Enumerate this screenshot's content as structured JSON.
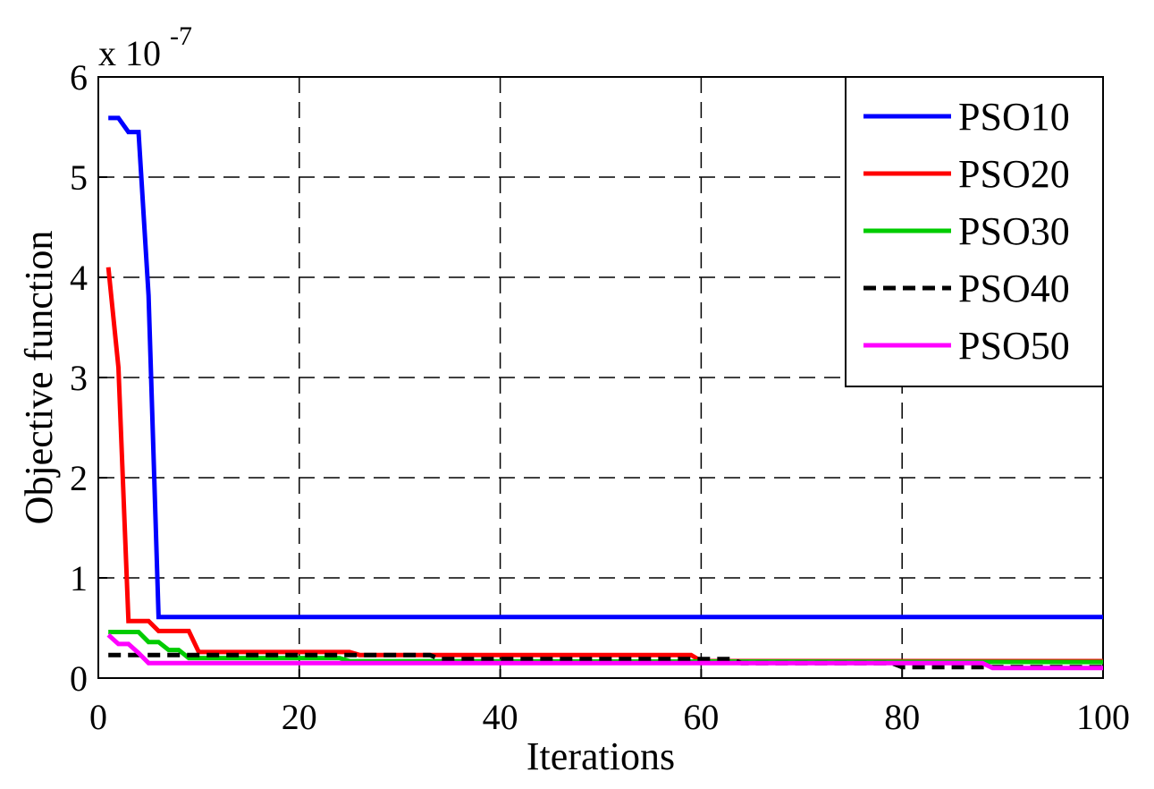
{
  "chart_data": {
    "type": "line",
    "x_label": "Iterations",
    "y_label": "Objective function",
    "y_multiplier": {
      "base": "x 10",
      "exponent": "-7"
    },
    "xlim": [
      0,
      100
    ],
    "xticks": [
      0,
      20,
      40,
      60,
      80,
      100
    ],
    "ylim": [
      0,
      6
    ],
    "yticks": [
      0,
      1,
      2,
      3,
      4,
      5,
      6
    ],
    "grid": true,
    "legend": "top-right",
    "series": [
      {
        "name": "PSO10",
        "color": "#0000ff",
        "linestyle": "solid",
        "x": [
          1,
          2,
          3,
          4,
          5,
          6,
          100
        ],
        "values": [
          5.59,
          5.59,
          5.45,
          5.45,
          3.82,
          0.61,
          0.61
        ]
      },
      {
        "name": "PSO20",
        "color": "#ff0000",
        "linestyle": "solid",
        "x": [
          1,
          2,
          3,
          5,
          6,
          9,
          10,
          25,
          26,
          59,
          60,
          100
        ],
        "values": [
          4.1,
          3.1,
          0.57,
          0.57,
          0.47,
          0.47,
          0.26,
          0.26,
          0.23,
          0.23,
          0.17,
          0.17
        ]
      },
      {
        "name": "PSO30",
        "color": "#00cc00",
        "linestyle": "solid",
        "x": [
          1,
          4,
          5,
          6,
          7,
          8,
          9,
          24,
          25,
          100
        ],
        "values": [
          0.46,
          0.46,
          0.36,
          0.36,
          0.28,
          0.28,
          0.2,
          0.2,
          0.17,
          0.16
        ]
      },
      {
        "name": "PSO40",
        "color": "#000000",
        "linestyle": "dashed",
        "x": [
          1,
          33,
          34,
          63,
          64,
          79,
          80,
          100
        ],
        "values": [
          0.23,
          0.23,
          0.19,
          0.19,
          0.15,
          0.15,
          0.11,
          0.11
        ]
      },
      {
        "name": "PSO50",
        "color": "#ff00ff",
        "linestyle": "solid",
        "x": [
          1,
          2,
          3,
          4,
          5,
          88,
          89,
          100
        ],
        "values": [
          0.43,
          0.34,
          0.34,
          0.25,
          0.15,
          0.15,
          0.1,
          0.1
        ]
      }
    ]
  }
}
